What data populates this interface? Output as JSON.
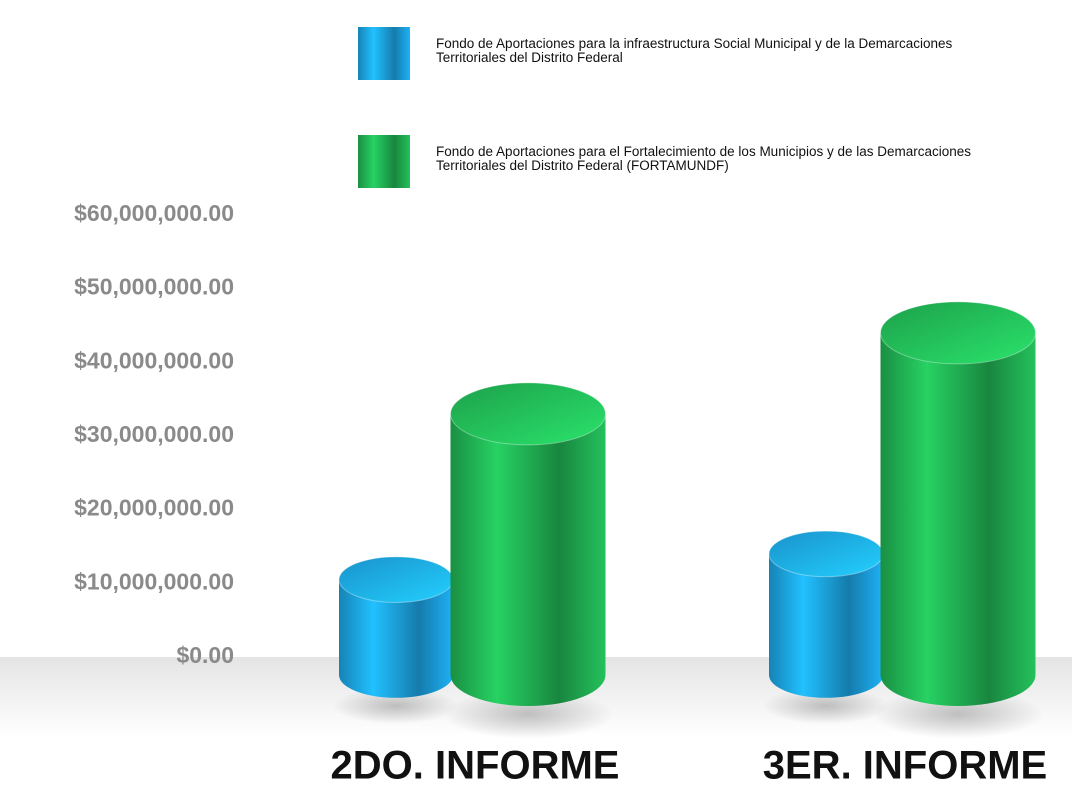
{
  "chart_data": {
    "type": "cylinder-bar",
    "categories": [
      "2DO. INFORME",
      "3ER. INFORME"
    ],
    "series": [
      {
        "name": "Fondo de Aportaciones para la infraestructura Social Municipal y de la Demarcaciones Territoriales del Distrito Federal",
        "color": "#1a9ad6",
        "values": [
          10500000,
          14000000
        ]
      },
      {
        "name": "Fondo de Aportaciones para el Fortalecimiento de los Municipios y de las Demarcaciones Territoriales del Distrito Federal (FORTAMUNDF)",
        "color": "#1fa84f",
        "values": [
          33000000,
          44000000
        ]
      }
    ],
    "ylim": [
      0,
      60000000
    ],
    "yticks": [
      {
        "value": 0,
        "label": "$0.00"
      },
      {
        "value": 10000000,
        "label": "$10,000,000.00"
      },
      {
        "value": 20000000,
        "label": "$20,000,000.00"
      },
      {
        "value": 30000000,
        "label": "$30,000,000.00"
      },
      {
        "value": 40000000,
        "label": "$40,000,000.00"
      },
      {
        "value": 50000000,
        "label": "$50,000,000.00"
      },
      {
        "value": 60000000,
        "label": "$60,000,000.00"
      }
    ],
    "grid": false,
    "legend": "top"
  }
}
